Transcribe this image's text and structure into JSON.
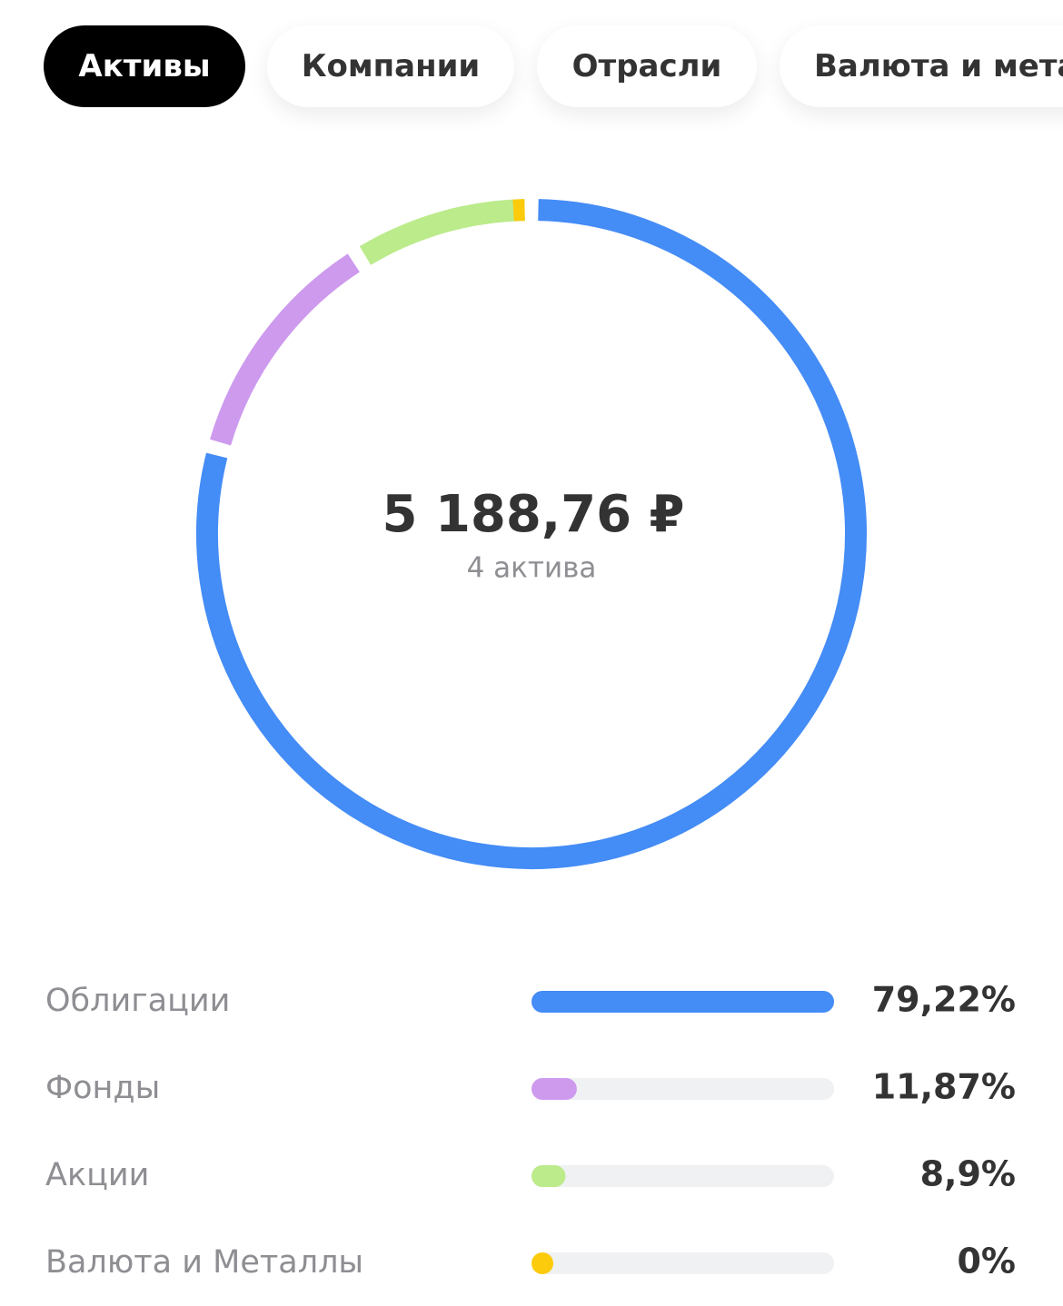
{
  "tabs": [
    "Активы",
    "Компании",
    "Отрасли",
    "Валюта и мета"
  ],
  "chart_data": {
    "type": "donut",
    "center_value": "5 188,76 ₽",
    "center_label": "4 актива",
    "categories": [
      "Облигации",
      "Фонды",
      "Акции",
      "Валюта и Металлы"
    ],
    "values": [
      79.22,
      11.87,
      8.9,
      0
    ],
    "value_labels": [
      "79,22%",
      "11,87%",
      "8,9%",
      "0%"
    ],
    "colors": [
      "#448cf6",
      "#cd9aee",
      "#bbeb8a",
      "#fccb0c"
    ]
  }
}
